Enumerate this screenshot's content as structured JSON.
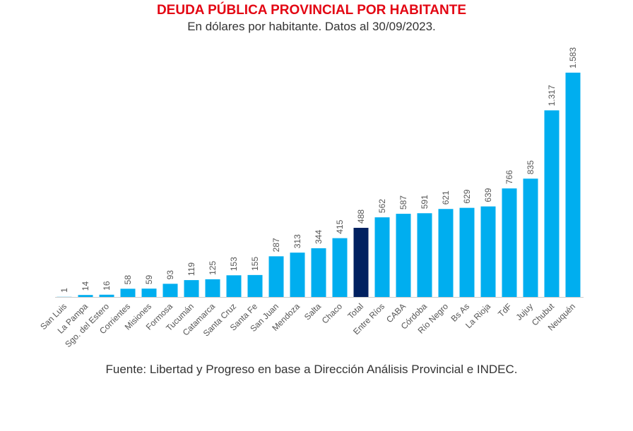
{
  "chart_data": {
    "type": "bar",
    "title": "DEUDA PÚBLICA PROVINCIAL POR HABITANTE",
    "subtitle": "En dólares por habitante. Datos al 30/09/2023.",
    "source": "Fuente: Libertad y Progreso en base a Dirección Análisis Provincial e INDEC.",
    "categories": [
      "San Luis",
      "La Pampa",
      "Sgo. del Estero",
      "Corrientes",
      "Misiones",
      "Formosa",
      "Tucumán",
      "Catamarca",
      "Santa Cruz",
      "Santa Fe",
      "San Juan",
      "Mendoza",
      "Salta",
      "Chaco",
      "Total",
      "Entre Ríos",
      "CABA",
      "Córdoba",
      "Río Negro",
      "Bs As",
      "La Rioja",
      "TdF",
      "Jujuy",
      "Chubut",
      "Neuquén"
    ],
    "values": [
      1,
      14,
      16,
      58,
      59,
      93,
      119,
      125,
      153,
      155,
      287,
      313,
      344,
      415,
      488,
      562,
      587,
      591,
      621,
      629,
      639,
      766,
      835,
      1317,
      1583
    ],
    "value_labels": [
      "1",
      "14",
      "16",
      "58",
      "59",
      "93",
      "119",
      "125",
      "153",
      "155",
      "287",
      "313",
      "344",
      "415",
      "488",
      "562",
      "587",
      "591",
      "621",
      "629",
      "639",
      "766",
      "835",
      "1.317",
      "1.583"
    ],
    "colors": [
      "#00aeef",
      "#00aeef",
      "#00aeef",
      "#00aeef",
      "#00aeef",
      "#00aeef",
      "#00aeef",
      "#00aeef",
      "#00aeef",
      "#00aeef",
      "#00aeef",
      "#00aeef",
      "#00aeef",
      "#00aeef",
      "#002060",
      "#00aeef",
      "#00aeef",
      "#00aeef",
      "#00aeef",
      "#00aeef",
      "#00aeef",
      "#00aeef",
      "#00aeef",
      "#00aeef",
      "#00aeef"
    ]
  }
}
